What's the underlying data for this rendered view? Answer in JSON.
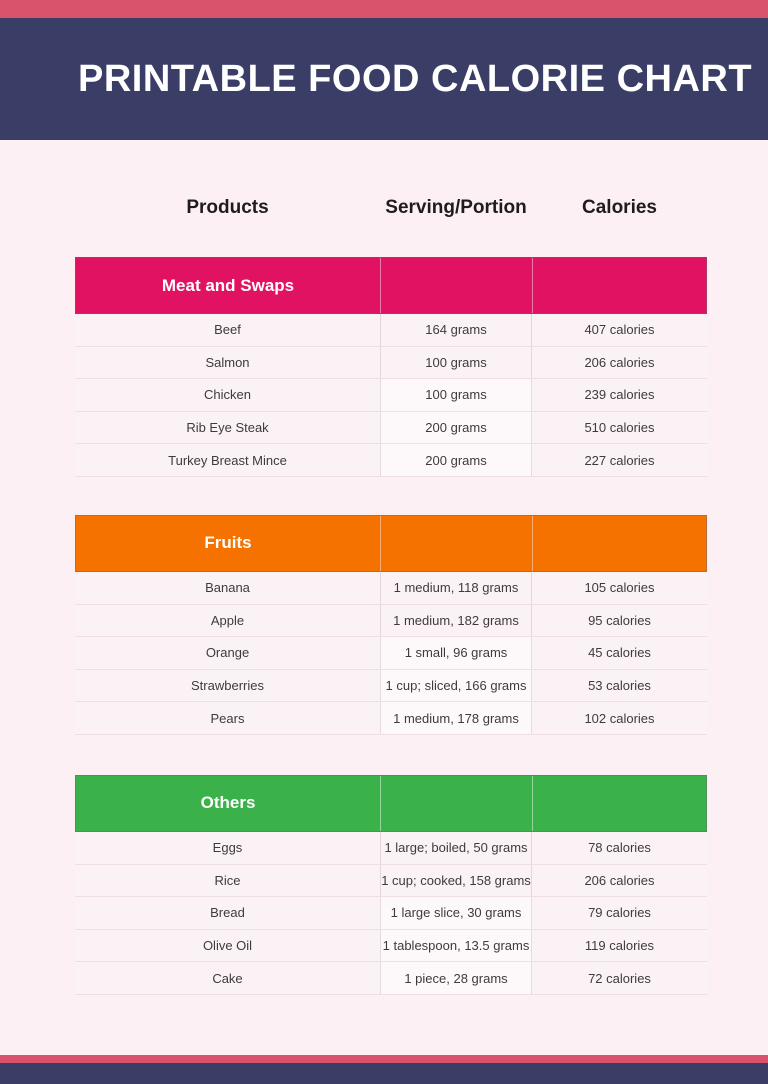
{
  "title": "PRINTABLE FOOD CALORIE CHART",
  "colors": {
    "top_stripe": "#d9536c",
    "header_band": "#3a3e66",
    "page_bg": "#fdf0f4",
    "meat_header": "#e11261",
    "fruits_header": "#f57200",
    "others_header": "#3bb14a",
    "footer_stripe": "#d9536c",
    "footer_band": "#3a3e66"
  },
  "columns": [
    "Products",
    "Serving/Portion",
    "Calories"
  ],
  "sections": [
    {
      "label": "Meat and Swaps",
      "color": "#e11261",
      "rows": [
        {
          "product": "Beef",
          "serving": "164 grams",
          "calories": "407 calories"
        },
        {
          "product": "Salmon",
          "serving": "100 grams",
          "calories": "206 calories"
        },
        {
          "product": "Chicken",
          "serving": "100 grams",
          "calories": "239 calories"
        },
        {
          "product": "Rib Eye Steak",
          "serving": "200 grams",
          "calories": "510 calories"
        },
        {
          "product": "Turkey Breast Mince",
          "serving": "200 grams",
          "calories": "227 calories"
        }
      ]
    },
    {
      "label": "Fruits",
      "color": "#f57200",
      "rows": [
        {
          "product": "Banana",
          "serving": "1 medium, 118 grams",
          "calories": "105 calories"
        },
        {
          "product": "Apple",
          "serving": "1 medium, 182 grams",
          "calories": "95 calories"
        },
        {
          "product": "Orange",
          "serving": "1 small, 96 grams",
          "calories": "45 calories"
        },
        {
          "product": "Strawberries",
          "serving": "1 cup; sliced, 166 grams",
          "calories": "53 calories"
        },
        {
          "product": "Pears",
          "serving": "1 medium, 178 grams",
          "calories": "102 calories"
        }
      ]
    },
    {
      "label": "Others",
      "color": "#3bb14a",
      "rows": [
        {
          "product": "Eggs",
          "serving": "1 large; boiled, 50 grams",
          "calories": "78 calories"
        },
        {
          "product": "Rice",
          "serving": "1 cup; cooked, 158 grams",
          "calories": "206 calories"
        },
        {
          "product": "Bread",
          "serving": "1 large slice, 30 grams",
          "calories": "79 calories"
        },
        {
          "product": "Olive Oil",
          "serving": "1 tablespoon, 13.5 grams",
          "calories": "119 calories"
        },
        {
          "product": "Cake",
          "serving": "1 piece, 28 grams",
          "calories": "72 calories"
        }
      ]
    }
  ]
}
